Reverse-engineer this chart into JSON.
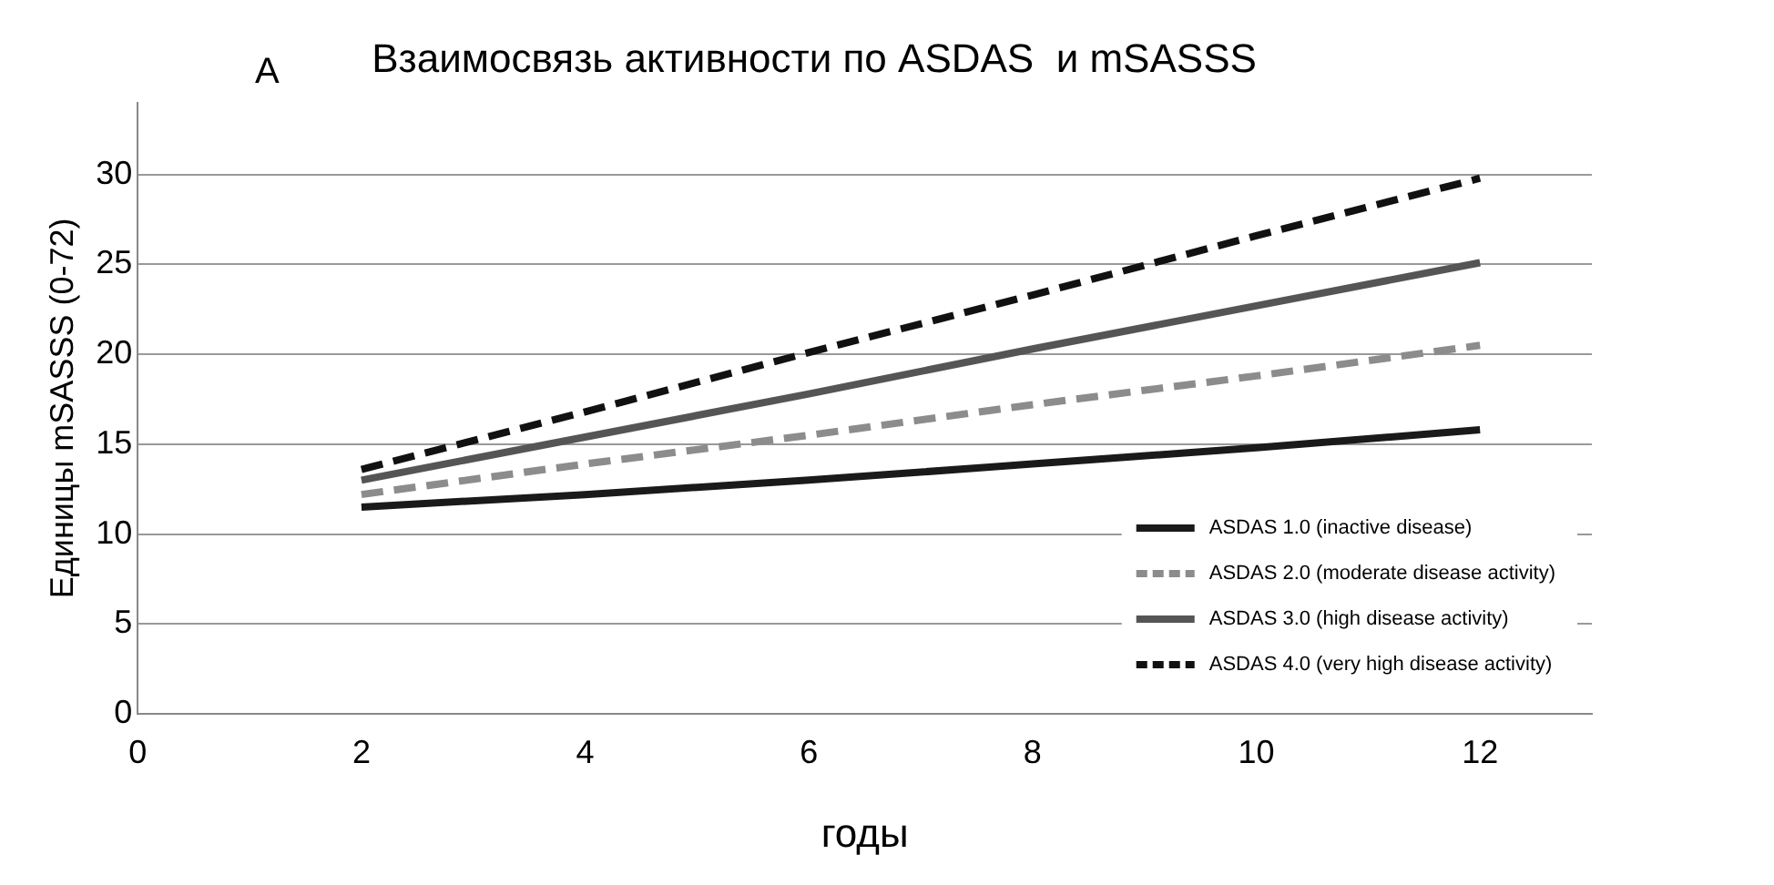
{
  "chart_data": {
    "type": "line",
    "title": "Взаимосвязь активности по ASDAS  и mSASSS",
    "xlabel": "годы",
    "ylabel": "Единицы mSASSS (0-72)",
    "annotations": [
      "A"
    ],
    "x": [
      2,
      4,
      6,
      8,
      10,
      12
    ],
    "series": [
      {
        "name": "ASDAS 1.0 (inactive disease)",
        "color": "#1a1a1a",
        "line_style": "solid",
        "values": [
          11.5,
          12.2,
          13.0,
          13.9,
          14.8,
          15.8
        ]
      },
      {
        "name": "ASDAS 2.0 (moderate disease activity)",
        "color": "#8c8c8c",
        "line_style": "dashed",
        "values": [
          12.2,
          13.9,
          15.5,
          17.2,
          18.8,
          20.5
        ]
      },
      {
        "name": "ASDAS 3.0 (high disease activity)",
        "color": "#555555",
        "line_style": "solid",
        "values": [
          13.0,
          15.4,
          17.8,
          20.3,
          22.7,
          25.1
        ]
      },
      {
        "name": "ASDAS 4.0 (very high disease activity)",
        "color": "#111111",
        "line_style": "dashed",
        "values": [
          13.6,
          16.8,
          20.1,
          23.3,
          26.6,
          29.8
        ]
      }
    ],
    "xlim": [
      0,
      13
    ],
    "xticks": [
      0,
      2,
      4,
      6,
      8,
      10,
      12
    ],
    "ylim": [
      0,
      34
    ],
    "yticks": [
      0,
      5,
      10,
      15,
      20,
      25,
      30
    ],
    "grid": "y",
    "legend": "bottom right",
    "marker": "none"
  }
}
